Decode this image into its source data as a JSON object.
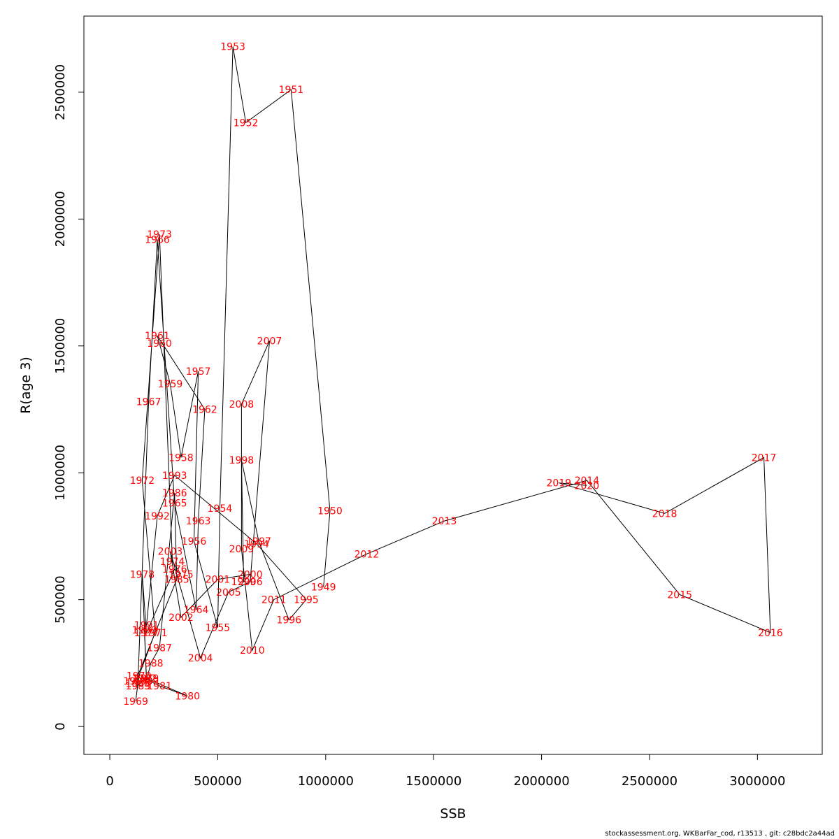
{
  "footer_text": "stockassessment.org, WKBarFar_cod, r13513 , git: c28bdc2a44ad",
  "chart_data": {
    "type": "line",
    "xlabel": "SSB",
    "ylabel": "R(age 3)",
    "xlim": [
      -120000,
      3300000
    ],
    "ylim": [
      -110000,
      2800000
    ],
    "xticks": [
      0,
      500000,
      1000000,
      1500000,
      2000000,
      2500000,
      3000000
    ],
    "xtick_labels": [
      "0",
      "500000",
      "1000000",
      "1500000",
      "2000000",
      "2500000",
      "3000000"
    ],
    "yticks": [
      0,
      500000,
      1000000,
      1500000,
      2000000,
      2500000
    ],
    "ytick_labels": [
      "0",
      "500000",
      "1000000",
      "1500000",
      "2000000",
      "2500000"
    ],
    "line_color": "#000000",
    "label_color": "#ff0000",
    "points": [
      {
        "year": "1949",
        "ssb": 990000,
        "r": 550000
      },
      {
        "year": "1950",
        "ssb": 1020000,
        "r": 850000
      },
      {
        "year": "1951",
        "ssb": 840000,
        "r": 2510000
      },
      {
        "year": "1952",
        "ssb": 630000,
        "r": 2380000
      },
      {
        "year": "1953",
        "ssb": 570000,
        "r": 2680000
      },
      {
        "year": "1954",
        "ssb": 510000,
        "r": 860000
      },
      {
        "year": "1955",
        "ssb": 500000,
        "r": 390000
      },
      {
        "year": "1956",
        "ssb": 390000,
        "r": 730000
      },
      {
        "year": "1957",
        "ssb": 410000,
        "r": 1400000
      },
      {
        "year": "1958",
        "ssb": 330000,
        "r": 1060000
      },
      {
        "year": "1959",
        "ssb": 280000,
        "r": 1350000
      },
      {
        "year": "1960",
        "ssb": 230000,
        "r": 1510000
      },
      {
        "year": "1961",
        "ssb": 220000,
        "r": 1540000
      },
      {
        "year": "1962",
        "ssb": 440000,
        "r": 1250000
      },
      {
        "year": "1963",
        "ssb": 410000,
        "r": 810000
      },
      {
        "year": "1964",
        "ssb": 400000,
        "r": 460000
      },
      {
        "year": "1965",
        "ssb": 300000,
        "r": 880000
      },
      {
        "year": "1966",
        "ssb": 220000,
        "r": 1920000
      },
      {
        "year": "1967",
        "ssb": 180000,
        "r": 1280000
      },
      {
        "year": "1968",
        "ssb": 130000,
        "r": 170000
      },
      {
        "year": "1969",
        "ssb": 120000,
        "r": 100000
      },
      {
        "year": "1970",
        "ssb": 135000,
        "r": 200000
      },
      {
        "year": "1971",
        "ssb": 210000,
        "r": 370000
      },
      {
        "year": "1972",
        "ssb": 150000,
        "r": 970000
      },
      {
        "year": "1973",
        "ssb": 230000,
        "r": 1940000
      },
      {
        "year": "1974",
        "ssb": 290000,
        "r": 650000
      },
      {
        "year": "1975",
        "ssb": 330000,
        "r": 600000
      },
      {
        "year": "1976",
        "ssb": 300000,
        "r": 620000
      },
      {
        "year": "1977",
        "ssb": 170000,
        "r": 370000
      },
      {
        "year": "1978",
        "ssb": 150000,
        "r": 600000
      },
      {
        "year": "1979",
        "ssb": 170000,
        "r": 190000
      },
      {
        "year": "1980",
        "ssb": 360000,
        "r": 120000
      },
      {
        "year": "1981",
        "ssb": 230000,
        "r": 160000
      },
      {
        "year": "1982",
        "ssb": 160000,
        "r": 190000
      },
      {
        "year": "1983",
        "ssb": 130000,
        "r": 160000
      },
      {
        "year": "1984",
        "ssb": 120000,
        "r": 180000
      },
      {
        "year": "1985",
        "ssb": 310000,
        "r": 580000
      },
      {
        "year": "1986",
        "ssb": 300000,
        "r": 920000
      },
      {
        "year": "1987",
        "ssb": 230000,
        "r": 310000
      },
      {
        "year": "1988",
        "ssb": 190000,
        "r": 250000
      },
      {
        "year": "1989",
        "ssb": 170000,
        "r": 180000
      },
      {
        "year": "1990",
        "ssb": 160000,
        "r": 380000
      },
      {
        "year": "1991",
        "ssb": 170000,
        "r": 400000
      },
      {
        "year": "1992",
        "ssb": 220000,
        "r": 830000
      },
      {
        "year": "1993",
        "ssb": 300000,
        "r": 990000
      },
      {
        "year": "1994",
        "ssb": 680000,
        "r": 720000
      },
      {
        "year": "1995",
        "ssb": 910000,
        "r": 500000
      },
      {
        "year": "1996",
        "ssb": 830000,
        "r": 420000
      },
      {
        "year": "1997",
        "ssb": 690000,
        "r": 730000
      },
      {
        "year": "1998",
        "ssb": 610000,
        "r": 1050000
      },
      {
        "year": "1999",
        "ssb": 620000,
        "r": 570000
      },
      {
        "year": "2000",
        "ssb": 650000,
        "r": 600000
      },
      {
        "year": "2001",
        "ssb": 500000,
        "r": 580000
      },
      {
        "year": "2002",
        "ssb": 330000,
        "r": 430000
      },
      {
        "year": "2003",
        "ssb": 280000,
        "r": 690000
      },
      {
        "year": "2004",
        "ssb": 420000,
        "r": 270000
      },
      {
        "year": "2005",
        "ssb": 550000,
        "r": 530000
      },
      {
        "year": "2006",
        "ssb": 650000,
        "r": 570000
      },
      {
        "year": "2007",
        "ssb": 740000,
        "r": 1520000
      },
      {
        "year": "2008",
        "ssb": 610000,
        "r": 1270000
      },
      {
        "year": "2009",
        "ssb": 610000,
        "r": 700000
      },
      {
        "year": "2010",
        "ssb": 660000,
        "r": 300000
      },
      {
        "year": "2011",
        "ssb": 760000,
        "r": 500000
      },
      {
        "year": "2012",
        "ssb": 1190000,
        "r": 680000
      },
      {
        "year": "2013",
        "ssb": 1550000,
        "r": 810000
      },
      {
        "year": "2014",
        "ssb": 2210000,
        "r": 970000
      },
      {
        "year": "2015",
        "ssb": 2640000,
        "r": 520000
      },
      {
        "year": "2016",
        "ssb": 3060000,
        "r": 370000
      },
      {
        "year": "2017",
        "ssb": 3030000,
        "r": 1060000
      },
      {
        "year": "2018",
        "ssb": 2570000,
        "r": 840000
      },
      {
        "year": "2019",
        "ssb": 2080000,
        "r": 960000
      },
      {
        "year": "2020",
        "ssb": 2210000,
        "r": 950000
      }
    ]
  }
}
